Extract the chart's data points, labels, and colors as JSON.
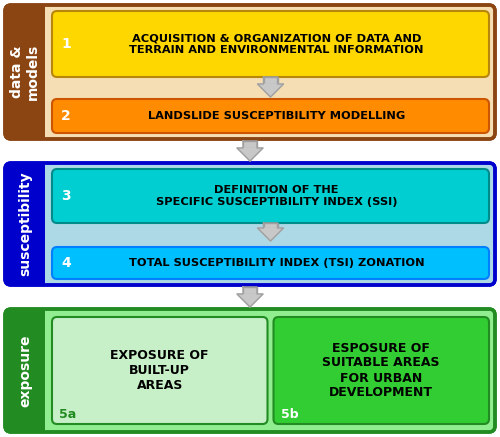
{
  "fig_width": 5.0,
  "fig_height": 4.37,
  "dpi": 100,
  "section1": {
    "bg_color": "#F5DEB3",
    "border_color": "#8B4513",
    "label": "data &\nmodels",
    "label_color": "#FFFFFF",
    "sidebar_color": "#8B4513",
    "box1_color": "#FFD700",
    "box1_border": "#B8860B",
    "box1_num": "1",
    "box1_text": "ACQUISITION & ORGANIZATION OF DATA AND\nTERRAIN AND ENVIRONMENTAL INFORMATION",
    "box2_color": "#FF8C00",
    "box2_border": "#CC5500",
    "box2_num": "2",
    "box2_text": "LANDSLIDE SUSCEPTIBILITY MODELLING"
  },
  "section2": {
    "bg_color": "#ADD8E6",
    "border_color": "#0000CD",
    "label": "susceptibility",
    "label_color": "#FFFFFF",
    "sidebar_color": "#0000CD",
    "box3_color": "#00CED1",
    "box3_border": "#008B8B",
    "box3_num": "3",
    "box3_text": "DEFINITION OF THE\nSPECIFIC SUSCEPTIBILITY INDEX (SSI)",
    "box4_color": "#00BFFF",
    "box4_border": "#0080FF",
    "box4_num": "4",
    "box4_text": "TOTAL SUSCEPTIBILITY INDEX (TSI) ZONATION"
  },
  "section3": {
    "bg_color": "#90EE90",
    "border_color": "#228B22",
    "label": "exposure",
    "label_color": "#FFFFFF",
    "sidebar_color": "#228B22",
    "box5a_color": "#C8F0C8",
    "box5a_border": "#228B22",
    "box5a_num": "5a",
    "box5a_text": "EXPOSURE OF\nBUILT-UP\nAREAS",
    "box5b_color": "#32CD32",
    "box5b_border": "#228B22",
    "box5b_num": "5b",
    "box5b_text": "ESPOSURE OF\nSUITABLE AREAS\nFOR URBAN\nDEVELOPMENT",
    "box5b_num_color": "#FFFFFF"
  },
  "arrow_color": "#C8C8C8",
  "arrow_edge_color": "#A0A0A0",
  "text_color": "#000000",
  "num_color": "#FFFFFF",
  "box5a_num_color": "#228B22"
}
